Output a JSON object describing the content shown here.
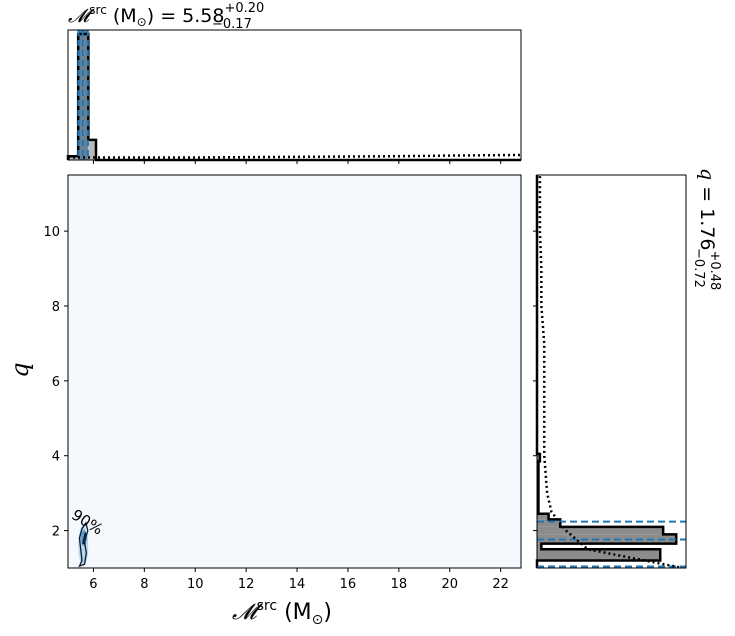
{
  "chart_data": [
    {
      "type": "histogram",
      "panel": "top-marginal",
      "title": {
        "symbol": "𝓜",
        "sup": "src",
        "unit_prefix": " (M",
        "unit_sub": "⊙",
        "unit_suffix": ")",
        "eq": " = 5.58",
        "plus": "+0.20",
        "minus": "−0.17"
      },
      "xlim": [
        5.0,
        22.8
      ],
      "bins": [
        {
          "x0": 5.0,
          "x1": 5.4,
          "h": 0.03
        },
        {
          "x0": 5.4,
          "x1": 5.8,
          "h": 1.0
        },
        {
          "x0": 5.8,
          "x1": 6.1,
          "h": 0.16
        },
        {
          "x0": 6.1,
          "x1": 22.8,
          "h": 0.0
        }
      ],
      "prior_line": [
        [
          5.0,
          0.02
        ],
        [
          6.0,
          0.02
        ],
        [
          10.0,
          0.02
        ],
        [
          14.0,
          0.025
        ],
        [
          18.0,
          0.03
        ],
        [
          20.0,
          0.035
        ],
        [
          22.8,
          0.04
        ]
      ],
      "dashed_lines": [
        5.41,
        5.58,
        5.78
      ],
      "shaded_interval": [
        5.41,
        5.78
      ]
    },
    {
      "type": "heatmap",
      "panel": "joint",
      "xlabel": {
        "symbol": "𝓜",
        "sup": "src",
        "unit_prefix": " (M",
        "unit_sub": "⊙",
        "unit_suffix": ")"
      },
      "ylabel": "q",
      "xlim": [
        5.0,
        22.8
      ],
      "ylim": [
        1.0,
        11.5
      ],
      "xticks": [
        6,
        8,
        10,
        12,
        14,
        16,
        18,
        20,
        22
      ],
      "yticks": [
        2,
        4,
        6,
        8,
        10
      ],
      "contour_label": "90%",
      "contour_points": [
        [
          5.45,
          1.05
        ],
        [
          5.55,
          1.2
        ],
        [
          5.5,
          1.5
        ],
        [
          5.45,
          1.8
        ],
        [
          5.55,
          2.05
        ],
        [
          5.7,
          2.2
        ],
        [
          5.78,
          2.0
        ],
        [
          5.65,
          1.7
        ],
        [
          5.72,
          1.4
        ],
        [
          5.65,
          1.1
        ]
      ],
      "inner_contour_points": [
        [
          5.58,
          1.65
        ],
        [
          5.62,
          1.8
        ],
        [
          5.68,
          1.95
        ],
        [
          5.7,
          1.8
        ],
        [
          5.64,
          1.65
        ]
      ]
    },
    {
      "type": "histogram",
      "orientation": "horizontal",
      "panel": "right-marginal",
      "title": {
        "symbol": "q",
        "eq": " = 1.76",
        "plus": "+0.48",
        "minus": "−0.72"
      },
      "ylim": [
        1.0,
        11.5
      ],
      "bins": [
        {
          "y0": 1.0,
          "y1": 1.2,
          "w": 0.0
        },
        {
          "y0": 1.2,
          "y1": 1.5,
          "w": 0.85
        },
        {
          "y0": 1.5,
          "y1": 1.65,
          "w": 0.03
        },
        {
          "y0": 1.65,
          "y1": 1.9,
          "w": 0.96
        },
        {
          "y0": 1.9,
          "y1": 2.1,
          "w": 0.87
        },
        {
          "y0": 2.1,
          "y1": 2.3,
          "w": 0.16
        },
        {
          "y0": 2.3,
          "y1": 2.45,
          "w": 0.08
        },
        {
          "y0": 2.45,
          "y1": 3.85,
          "w": 0.01
        },
        {
          "y0": 3.85,
          "y1": 4.05,
          "w": 0.02
        },
        {
          "y0": 4.05,
          "y1": 11.5,
          "w": 0.0
        }
      ],
      "prior_line": [
        [
          1.02,
          0.98
        ],
        [
          1.5,
          0.35
        ],
        [
          2.0,
          0.2
        ],
        [
          2.5,
          0.1
        ],
        [
          3.0,
          0.07
        ],
        [
          4.0,
          0.05
        ],
        [
          5.0,
          0.05
        ],
        [
          6.0,
          0.05
        ],
        [
          7.0,
          0.05
        ],
        [
          8.0,
          0.03
        ],
        [
          9.0,
          0.03
        ],
        [
          10.0,
          0.02
        ],
        [
          11.0,
          0.02
        ],
        [
          11.5,
          0.02
        ]
      ],
      "dashed_lines": [
        1.04,
        1.76,
        2.24
      ]
    }
  ]
}
